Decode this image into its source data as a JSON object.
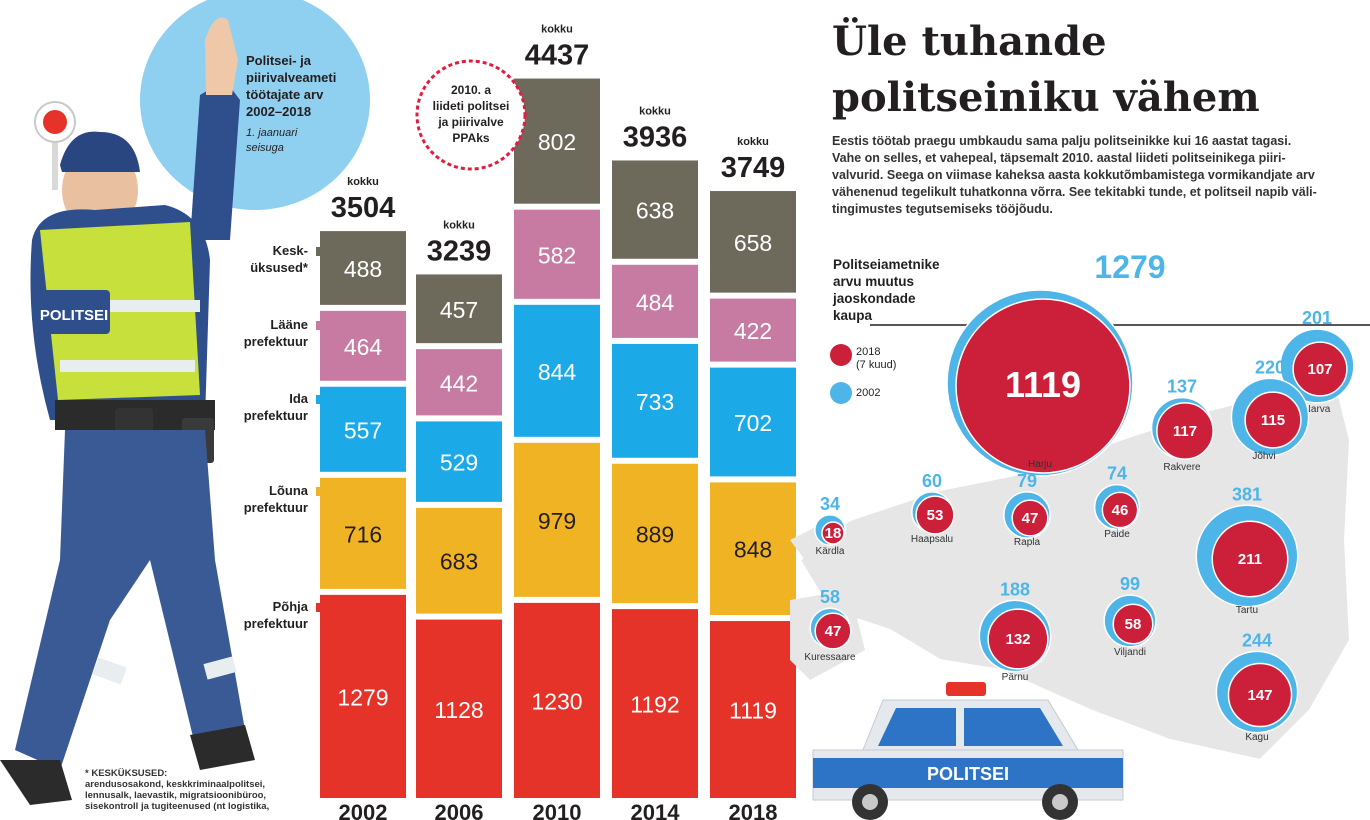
{
  "intro": {
    "line1": "Politsei- ja",
    "line2": "piirivalveameti",
    "line3": "töötajate arv",
    "line4": "2002–2018",
    "sub1": "1. jaanuari",
    "sub2": "seisuga"
  },
  "badge": {
    "line1": "2010. a",
    "line2": "liideti politsei",
    "line3": "ja piirivalve",
    "line4": "PPAks"
  },
  "vest_text": "POLITSEI",
  "car_text": "POLITSEI",
  "chart_data": [
    {
      "type": "bar",
      "stacked": true,
      "categories": [
        "2002",
        "2006",
        "2010",
        "2014",
        "2018"
      ],
      "total_label": "kokku",
      "totals": [
        3504,
        3239,
        4437,
        3936,
        3749
      ],
      "series": [
        {
          "name": "Põhja prefektuur",
          "color": "#e63329",
          "values": [
            1279,
            1128,
            1230,
            1192,
            1119
          ]
        },
        {
          "name": "Lõuna prefektuur",
          "color": "#f0b323",
          "values": [
            716,
            683,
            979,
            889,
            848
          ]
        },
        {
          "name": "Ida prefektuur",
          "color": "#1ca9e8",
          "values": [
            557,
            529,
            844,
            733,
            702
          ]
        },
        {
          "name": "Lääne prefektuur",
          "color": "#c77ba3",
          "values": [
            464,
            442,
            582,
            484,
            422
          ]
        },
        {
          "name": "Kesk-üksused*",
          "color": "#6d6a5c",
          "values": [
            488,
            457,
            802,
            638,
            658
          ]
        }
      ]
    },
    {
      "type": "scatter",
      "series_names": [
        "2018 (7 kuud)",
        "2002"
      ],
      "colors": {
        "2018": "#cc1f3a",
        "2002": "#4db5e8"
      },
      "points": [
        {
          "name": "Harju",
          "v2002": 1279,
          "v2018": 1119
        },
        {
          "name": "Narva",
          "v2002": 201,
          "v2018": 107
        },
        {
          "name": "Jõhvi",
          "v2002": 220,
          "v2018": 115
        },
        {
          "name": "Rakvere",
          "v2002": 137,
          "v2018": 117
        },
        {
          "name": "Kärdla",
          "v2002": 34,
          "v2018": 18
        },
        {
          "name": "Haapsalu",
          "v2002": 60,
          "v2018": 53
        },
        {
          "name": "Rapla",
          "v2002": 79,
          "v2018": 47
        },
        {
          "name": "Paide",
          "v2002": 74,
          "v2018": 46
        },
        {
          "name": "Tartu",
          "v2002": 381,
          "v2018": 211
        },
        {
          "name": "Kuressaare",
          "v2002": 58,
          "v2018": 47
        },
        {
          "name": "Pärnu",
          "v2002": 188,
          "v2018": 132
        },
        {
          "name": "Viljandi",
          "v2002": 99,
          "v2018": 58
        },
        {
          "name": "Kagu",
          "v2002": 244,
          "v2018": 147
        }
      ]
    }
  ],
  "labels": {
    "kesk1": "Kesk-",
    "kesk2": "üksused*",
    "laane1": "Lääne",
    "laane2": "prefektuur",
    "ida1": "Ida",
    "ida2": "prefektuur",
    "louna1": "Lõuna",
    "louna2": "prefektuur",
    "pohja1": "Põhja",
    "pohja2": "prefektuur"
  },
  "footnote": {
    "l1": "* KESKÜKSUSED:",
    "l2": "arendusosakond, keskkriminaalpolitsei,",
    "l3": "lennusalk, laevastik, migratsioonibüroo,",
    "l4": "sisekontroll ja tugiteenused (nt logistika,"
  },
  "article": {
    "title1": "Üle tuhande",
    "title2": "politseiniku vähem",
    "lead1": "Eestis töötab praegu umbkaudu sama palju politseinikke kui 16 aastat tagasi.",
    "lead2": "Vahe on selles, et vahepeal, täpsemalt 2010. aastal liideti politseinikega piiri-",
    "lead3": "valvurid. Seega on viimase kaheksa aasta kokkutõmbamistega vormikandjate arv",
    "lead4": "vähenenud tegelikult tuhatkonna võrra. See tekitabki tunde, et politseil napib väli-",
    "lead5": "tingimustes tegutsemiseks tööjõudu."
  },
  "map": {
    "h1": "Politseiametnike",
    "h2": "arvu muutus",
    "h3": "jaoskondade",
    "h4": "kaupa",
    "legend_2018_a": "2018",
    "legend_2018_b": "(7 kuud)",
    "legend_2002": "2002"
  }
}
